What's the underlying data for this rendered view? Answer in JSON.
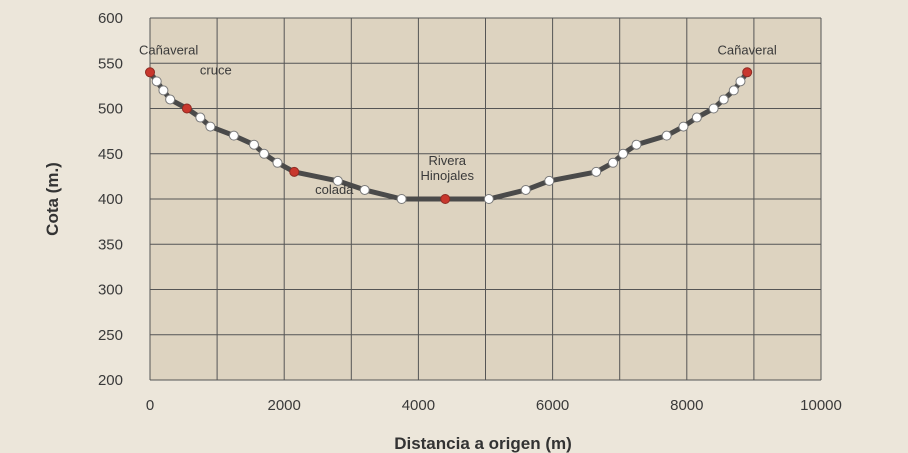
{
  "chart_data": {
    "type": "line",
    "xlabel": "Distancia a origen (m)",
    "ylabel": "Cota (m.)",
    "xlim": [
      0,
      10000
    ],
    "ylim": [
      200,
      600
    ],
    "x_ticks": [
      "0",
      "2000",
      "4000",
      "6000",
      "8000",
      "10000"
    ],
    "y_ticks": [
      "200",
      "250",
      "300",
      "350",
      "400",
      "450",
      "500",
      "550",
      "600"
    ],
    "x_grid_step": 1000,
    "grid": true,
    "colors": {
      "line": "#4a4a4a",
      "point_fill": "#ffffff",
      "highlight": "#c8372d",
      "grid": "#555555",
      "plot_bg": "#ddd3c0"
    },
    "series": [
      {
        "points": [
          [
            0,
            540
          ],
          [
            100,
            530
          ],
          [
            200,
            520
          ],
          [
            300,
            510
          ],
          [
            550,
            500
          ],
          [
            750,
            490
          ],
          [
            900,
            480
          ],
          [
            1250,
            470
          ],
          [
            1550,
            460
          ],
          [
            1700,
            450
          ],
          [
            1900,
            440
          ],
          [
            2150,
            430
          ],
          [
            2800,
            420
          ],
          [
            3200,
            410
          ],
          [
            3750,
            400
          ],
          [
            4400,
            400
          ],
          [
            5050,
            400
          ],
          [
            5600,
            410
          ],
          [
            5950,
            420
          ],
          [
            6650,
            430
          ],
          [
            6900,
            440
          ],
          [
            7050,
            450
          ],
          [
            7250,
            460
          ],
          [
            7700,
            470
          ],
          [
            7950,
            480
          ],
          [
            8150,
            490
          ],
          [
            8400,
            500
          ],
          [
            8550,
            510
          ],
          [
            8700,
            520
          ],
          [
            8800,
            530
          ],
          [
            8900,
            540
          ]
        ],
        "highlighted_points": [
          [
            0,
            540
          ],
          [
            550,
            500
          ],
          [
            2150,
            430
          ],
          [
            4400,
            400
          ],
          [
            8900,
            540
          ]
        ]
      }
    ],
    "annotations": [
      {
        "text": "Cañaveral",
        "x": 0,
        "y": 540
      },
      {
        "text": "cruce",
        "x": 550,
        "y": 500
      },
      {
        "text": "colada",
        "x": 2150,
        "y": 430
      },
      {
        "text": "Rivera",
        "x": 4400,
        "y": 400
      },
      {
        "text": "Hinojales",
        "x": 4400,
        "y": 400
      },
      {
        "text": "Cañaveral",
        "x": 8900,
        "y": 540
      }
    ]
  }
}
